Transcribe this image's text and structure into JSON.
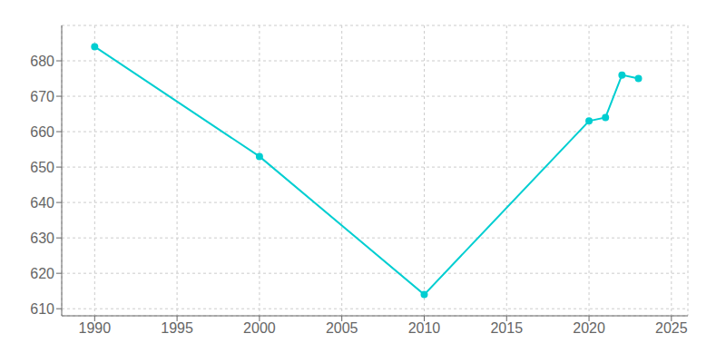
{
  "chart_data": {
    "type": "line",
    "x": [
      1990,
      2000,
      2010,
      2020,
      2021,
      2022,
      2023
    ],
    "values": [
      684,
      653,
      614,
      663,
      664,
      676,
      675
    ],
    "color": "#00CED1",
    "marker": "circle",
    "xlim": [
      1988,
      2026
    ],
    "ylim": [
      608,
      690
    ],
    "xticks": [
      1990,
      1995,
      2000,
      2005,
      2010,
      2015,
      2020,
      2025
    ],
    "yticks": [
      610,
      620,
      630,
      640,
      650,
      660,
      670,
      680
    ],
    "grid": true
  }
}
